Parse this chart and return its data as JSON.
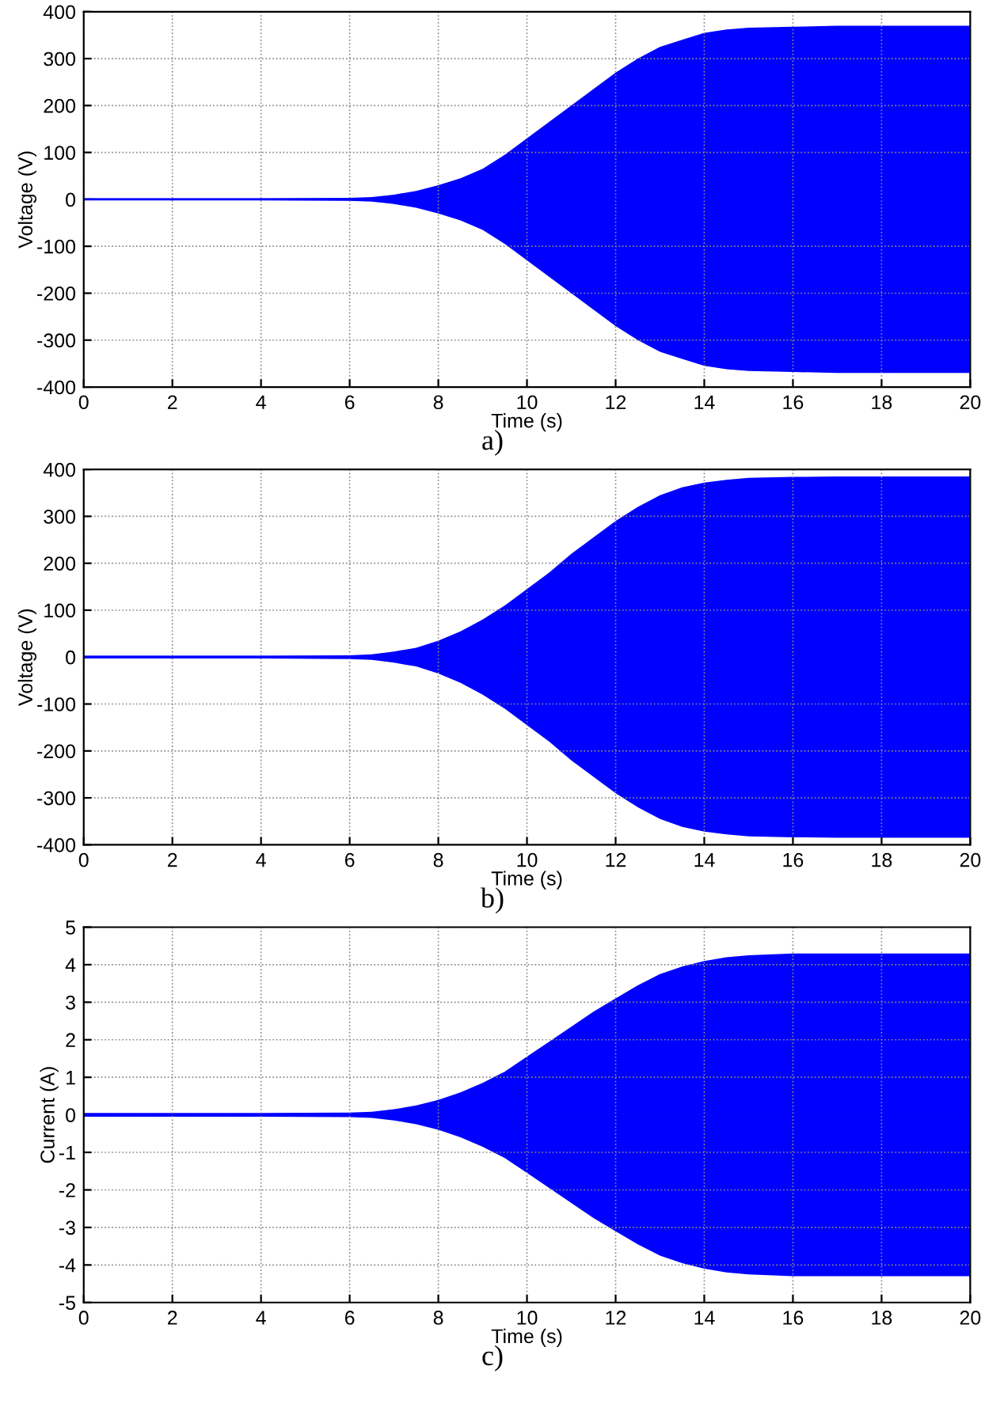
{
  "chart_data": [
    {
      "type": "line",
      "xlabel": "Time (s)",
      "ylabel": "Voltage (V)",
      "annotations": [
        "a)"
      ],
      "grid": true,
      "x": [
        0,
        2,
        4,
        6,
        6.5,
        7,
        7.5,
        8,
        8.5,
        9,
        9.5,
        10,
        10.5,
        11,
        11.5,
        12,
        12.5,
        13,
        13.5,
        14,
        14.5,
        15,
        16,
        17,
        18,
        19,
        20
      ],
      "series": [
        {
          "color": "#0000ff",
          "values": [
            0,
            0,
            0,
            0,
            0,
            0,
            0,
            0,
            0,
            0,
            0,
            0,
            0,
            0,
            0,
            0,
            0,
            0,
            0,
            0,
            0,
            0,
            0,
            0,
            0,
            0,
            0
          ],
          "upper": [
            2,
            2,
            2,
            3,
            5,
            10,
            18,
            30,
            45,
            65,
            95,
            130,
            165,
            200,
            235,
            270,
            300,
            325,
            340,
            355,
            362,
            366,
            368,
            370,
            370,
            370,
            370
          ],
          "lower": [
            -2,
            -2,
            -2,
            -3,
            -5,
            -10,
            -18,
            -30,
            -45,
            -65,
            -95,
            -130,
            -165,
            -200,
            -235,
            -270,
            -300,
            -325,
            -340,
            -355,
            -362,
            -366,
            -368,
            -370,
            -370,
            -370,
            -370
          ]
        }
      ],
      "xlim": [
        0,
        20
      ],
      "ylim": [
        -400,
        400
      ],
      "xticks": [
        0,
        2,
        4,
        6,
        8,
        10,
        12,
        14,
        16,
        18,
        20
      ],
      "yticks": [
        -400,
        -300,
        -200,
        -100,
        0,
        100,
        200,
        300,
        400
      ]
    },
    {
      "type": "line",
      "xlabel": "Time (s)",
      "ylabel": "Voltage (V)",
      "annotations": [
        "b)"
      ],
      "grid": true,
      "x": [
        0,
        2,
        4,
        6,
        6.5,
        7,
        7.5,
        8,
        8.5,
        9,
        9.5,
        10,
        10.5,
        11,
        11.5,
        12,
        12.5,
        13,
        13.5,
        14,
        14.5,
        15,
        16,
        17,
        18,
        19,
        20
      ],
      "series": [
        {
          "color": "#0000ff",
          "values": [
            0,
            0,
            0,
            0,
            0,
            0,
            0,
            0,
            0,
            0,
            0,
            0,
            0,
            0,
            0,
            0,
            0,
            0,
            0,
            0,
            0,
            0,
            0,
            0,
            0,
            0,
            0
          ],
          "upper": [
            3,
            3,
            3,
            4,
            6,
            12,
            20,
            35,
            55,
            80,
            110,
            145,
            180,
            220,
            255,
            290,
            320,
            345,
            362,
            372,
            378,
            382,
            384,
            385,
            385,
            385,
            385
          ],
          "lower": [
            -3,
            -3,
            -3,
            -4,
            -6,
            -12,
            -20,
            -35,
            -55,
            -80,
            -110,
            -145,
            -180,
            -220,
            -255,
            -290,
            -320,
            -345,
            -362,
            -372,
            -378,
            -382,
            -384,
            -385,
            -385,
            -385,
            -385
          ]
        }
      ],
      "xlim": [
        0,
        20
      ],
      "ylim": [
        -400,
        400
      ],
      "xticks": [
        0,
        2,
        4,
        6,
        8,
        10,
        12,
        14,
        16,
        18,
        20
      ],
      "yticks": [
        -400,
        -300,
        -200,
        -100,
        0,
        100,
        200,
        300,
        400
      ]
    },
    {
      "type": "line",
      "xlabel": "Time (s)",
      "ylabel": "Current (A)",
      "annotations": [
        "c)"
      ],
      "grid": true,
      "x": [
        0,
        2,
        4,
        6,
        6.5,
        7,
        7.5,
        8,
        8.5,
        9,
        9.5,
        10,
        10.5,
        11,
        11.5,
        12,
        12.5,
        13,
        13.5,
        14,
        14.5,
        15,
        16,
        17,
        18,
        19,
        20
      ],
      "series": [
        {
          "color": "#0000ff",
          "values": [
            0,
            0,
            0,
            0,
            0,
            0,
            0,
            0,
            0,
            0,
            0,
            0,
            0,
            0,
            0,
            0,
            0,
            0,
            0,
            0,
            0,
            0,
            0,
            0,
            0,
            0,
            0
          ],
          "upper": [
            0.05,
            0.05,
            0.05,
            0.06,
            0.08,
            0.15,
            0.25,
            0.4,
            0.6,
            0.85,
            1.15,
            1.55,
            1.95,
            2.35,
            2.75,
            3.1,
            3.45,
            3.75,
            3.95,
            4.1,
            4.2,
            4.25,
            4.3,
            4.3,
            4.3,
            4.3,
            4.3
          ],
          "lower": [
            -0.05,
            -0.05,
            -0.05,
            -0.06,
            -0.08,
            -0.15,
            -0.25,
            -0.4,
            -0.6,
            -0.85,
            -1.15,
            -1.55,
            -1.95,
            -2.35,
            -2.75,
            -3.1,
            -3.45,
            -3.75,
            -3.95,
            -4.1,
            -4.2,
            -4.25,
            -4.3,
            -4.3,
            -4.3,
            -4.3,
            -4.3
          ]
        }
      ],
      "xlim": [
        0,
        20
      ],
      "ylim": [
        -5,
        5
      ],
      "xticks": [
        0,
        2,
        4,
        6,
        8,
        10,
        12,
        14,
        16,
        18,
        20
      ],
      "yticks": [
        -5,
        -4,
        -3,
        -2,
        -1,
        0,
        1,
        2,
        3,
        4,
        5
      ]
    }
  ]
}
